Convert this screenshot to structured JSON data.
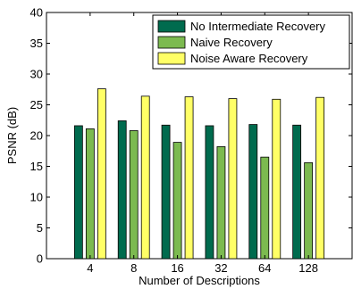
{
  "chart_data": {
    "type": "bar",
    "categories": [
      "4",
      "8",
      "16",
      "32",
      "64",
      "128"
    ],
    "series": [
      {
        "name": "No Intermediate Recovery",
        "color": "#006b4e",
        "values": [
          21.6,
          22.4,
          21.7,
          21.6,
          21.8,
          21.7
        ]
      },
      {
        "name": "Naive Recovery",
        "color": "#7cba50",
        "values": [
          21.1,
          20.8,
          18.9,
          18.2,
          16.5,
          15.6
        ]
      },
      {
        "name": "Noise Aware Recovery",
        "color": "#ffff66",
        "values": [
          27.6,
          26.4,
          26.3,
          26.0,
          25.9,
          26.2
        ]
      }
    ],
    "xlabel": "Number of Descriptions",
    "ylabel": "PSNR (dB)",
    "ylim": [
      0,
      40
    ],
    "yticks": [
      0,
      5,
      10,
      15,
      20,
      25,
      30,
      35,
      40
    ],
    "grid": false,
    "legend_position": "top-right"
  }
}
